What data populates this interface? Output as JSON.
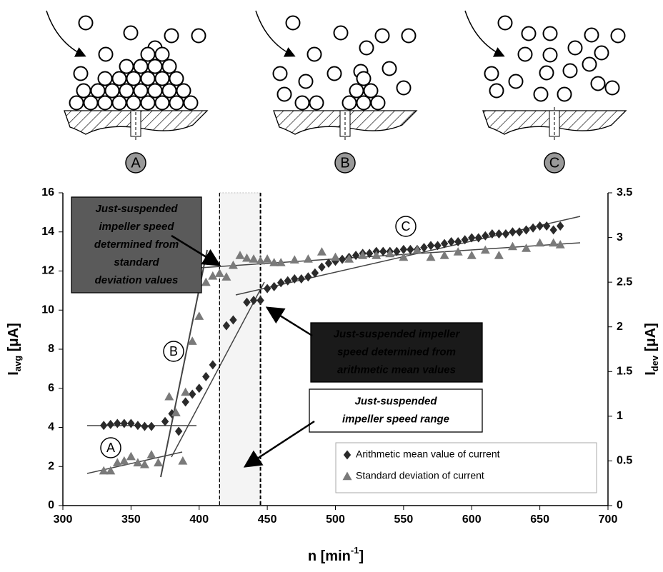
{
  "panels": [
    {
      "label": "A"
    },
    {
      "label": "B"
    },
    {
      "label": "C"
    }
  ],
  "chart_data": {
    "type": "scatter",
    "xlabel": {
      "main": "n [min",
      "sup": "-1",
      "end": "]"
    },
    "ylabel": {
      "main": "I",
      "sub": "avg",
      "unit": " [μA]"
    },
    "y2label": {
      "main": "I",
      "sub": "dev",
      "unit": " [μA]"
    },
    "xlim": [
      300,
      700
    ],
    "xticks": [
      300,
      350,
      400,
      450,
      500,
      550,
      600,
      650,
      700
    ],
    "ylim": [
      0,
      16
    ],
    "yticks": [
      0,
      2,
      4,
      6,
      8,
      10,
      12,
      14,
      16
    ],
    "y2lim": [
      0,
      3.5
    ],
    "y2ticks": [
      0,
      0.5,
      1,
      1.5,
      2,
      2.5,
      3,
      3.5
    ],
    "range_lines": [
      415,
      445
    ],
    "region_labels": [
      "A",
      "B",
      "C"
    ],
    "annotations": [
      {
        "lines": [
          "Just-suspended",
          "impeller speed",
          "determined from",
          "standard",
          "deviation values"
        ]
      },
      {
        "lines": [
          "Just-suspended impeller",
          "speed determined from",
          "arithmetic mean values"
        ]
      },
      {
        "lines": [
          "Just-suspended",
          "impeller speed range"
        ]
      }
    ],
    "series": [
      {
        "name": "Arithmetic mean value of current",
        "color": "#2a2a2a",
        "marker": "diamond",
        "x": [
          330,
          335,
          340,
          345,
          350,
          355,
          360,
          365,
          375,
          380,
          385,
          390,
          395,
          400,
          405,
          410,
          420,
          425,
          435,
          440,
          445,
          450,
          455,
          460,
          465,
          470,
          475,
          480,
          485,
          490,
          495,
          500,
          505,
          510,
          515,
          520,
          525,
          530,
          535,
          540,
          545,
          550,
          555,
          560,
          565,
          570,
          575,
          580,
          585,
          590,
          595,
          600,
          605,
          610,
          615,
          620,
          625,
          630,
          635,
          640,
          645,
          650,
          655,
          660,
          665
        ],
        "values": [
          4.1,
          4.15,
          4.2,
          4.2,
          4.2,
          4.1,
          4.05,
          4.05,
          4.3,
          4.7,
          3.8,
          5.3,
          5.7,
          6.0,
          6.6,
          7.2,
          9.2,
          9.5,
          10.4,
          10.5,
          10.5,
          11.1,
          11.2,
          11.4,
          11.5,
          11.6,
          11.6,
          11.7,
          11.9,
          12.2,
          12.4,
          12.5,
          12.6,
          12.7,
          12.8,
          12.9,
          12.9,
          13.0,
          13.0,
          13.0,
          13.0,
          13.1,
          13.1,
          13.1,
          13.2,
          13.3,
          13.3,
          13.4,
          13.5,
          13.5,
          13.6,
          13.7,
          13.7,
          13.8,
          13.9,
          13.9,
          13.9,
          14.0,
          14.0,
          14.1,
          14.2,
          14.3,
          14.3,
          14.1,
          14.3
        ]
      },
      {
        "name": "Standard deviation of current",
        "color": "#7a7a7a",
        "marker": "triangle",
        "axis": "y2",
        "x": [
          330,
          335,
          340,
          345,
          350,
          355,
          360,
          365,
          370,
          378,
          383,
          388,
          390,
          395,
          400,
          405,
          410,
          415,
          420,
          425,
          430,
          435,
          440,
          445,
          450,
          455,
          460,
          470,
          480,
          490,
          500,
          510,
          520,
          530,
          540,
          550,
          560,
          570,
          580,
          590,
          600,
          610,
          620,
          630,
          640,
          650,
          660,
          665
        ],
        "values": [
          0.39,
          0.39,
          0.48,
          0.5,
          0.55,
          0.48,
          0.46,
          0.57,
          0.48,
          1.22,
          1.04,
          0.5,
          1.27,
          1.84,
          2.12,
          2.5,
          2.57,
          2.6,
          2.56,
          2.69,
          2.8,
          2.77,
          2.76,
          2.74,
          2.76,
          2.72,
          2.72,
          2.75,
          2.76,
          2.84,
          2.78,
          2.76,
          2.8,
          2.8,
          2.82,
          2.78,
          2.86,
          2.78,
          2.8,
          2.84,
          2.8,
          2.86,
          2.8,
          2.9,
          2.88,
          2.94,
          2.94,
          2.92
        ]
      }
    ]
  }
}
